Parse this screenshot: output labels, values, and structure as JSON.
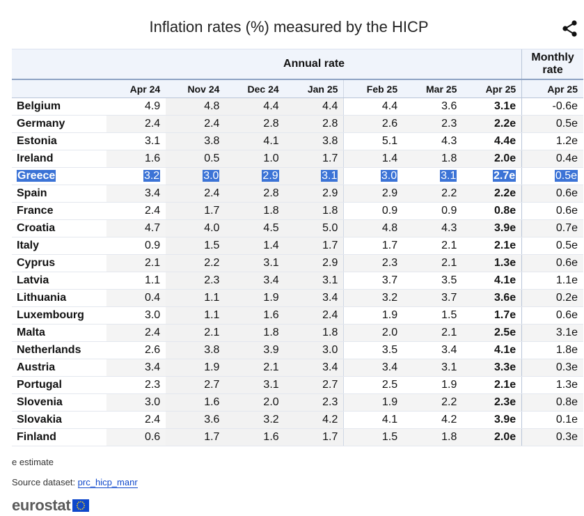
{
  "title": "Inflation rates (%) measured by the HICP",
  "header": {
    "annual_label": "Annual rate",
    "monthly_label_line1": "Monthly",
    "monthly_label_line2": "rate",
    "columns": [
      "Apr 24",
      "Nov 24",
      "Dec 24",
      "Jan 25",
      "Feb 25",
      "Mar 25",
      "Apr 25",
      "Apr 25"
    ]
  },
  "rows": [
    {
      "country": "Belgium",
      "values": [
        "4.9",
        "4.8",
        "4.4",
        "4.4",
        "4.4",
        "3.6",
        "3.1e",
        "-0.6e"
      ]
    },
    {
      "country": "Germany",
      "values": [
        "2.4",
        "2.4",
        "2.8",
        "2.8",
        "2.6",
        "2.3",
        "2.2e",
        "0.5e"
      ]
    },
    {
      "country": "Estonia",
      "values": [
        "3.1",
        "3.8",
        "4.1",
        "3.8",
        "5.1",
        "4.3",
        "4.4e",
        "1.2e"
      ]
    },
    {
      "country": "Ireland",
      "values": [
        "1.6",
        "0.5",
        "1.0",
        "1.7",
        "1.4",
        "1.8",
        "2.0e",
        "0.4e"
      ]
    },
    {
      "country": "Greece",
      "values": [
        "3.2",
        "3.0",
        "2.9",
        "3.1",
        "3.0",
        "3.1",
        "2.7e",
        "0.5e"
      ]
    },
    {
      "country": "Spain",
      "values": [
        "3.4",
        "2.4",
        "2.8",
        "2.9",
        "2.9",
        "2.2",
        "2.2e",
        "0.6e"
      ]
    },
    {
      "country": "France",
      "values": [
        "2.4",
        "1.7",
        "1.8",
        "1.8",
        "0.9",
        "0.9",
        "0.8e",
        "0.6e"
      ]
    },
    {
      "country": "Croatia",
      "values": [
        "4.7",
        "4.0",
        "4.5",
        "5.0",
        "4.8",
        "4.3",
        "3.9e",
        "0.7e"
      ]
    },
    {
      "country": "Italy",
      "values": [
        "0.9",
        "1.5",
        "1.4",
        "1.7",
        "1.7",
        "2.1",
        "2.1e",
        "0.5e"
      ]
    },
    {
      "country": "Cyprus",
      "values": [
        "2.1",
        "2.2",
        "3.1",
        "2.9",
        "2.3",
        "2.1",
        "1.3e",
        "0.6e"
      ]
    },
    {
      "country": "Latvia",
      "values": [
        "1.1",
        "2.3",
        "3.4",
        "3.1",
        "3.7",
        "3.5",
        "4.1e",
        "1.1e"
      ]
    },
    {
      "country": "Lithuania",
      "values": [
        "0.4",
        "1.1",
        "1.9",
        "3.4",
        "3.2",
        "3.7",
        "3.6e",
        "0.2e"
      ]
    },
    {
      "country": "Luxembourg",
      "values": [
        "3.0",
        "1.1",
        "1.6",
        "2.4",
        "1.9",
        "1.5",
        "1.7e",
        "0.6e"
      ]
    },
    {
      "country": "Malta",
      "values": [
        "2.4",
        "2.1",
        "1.8",
        "1.8",
        "2.0",
        "2.1",
        "2.5e",
        "3.1e"
      ]
    },
    {
      "country": "Netherlands",
      "values": [
        "2.6",
        "3.8",
        "3.9",
        "3.0",
        "3.5",
        "3.4",
        "4.1e",
        "1.8e"
      ]
    },
    {
      "country": "Austria",
      "values": [
        "3.4",
        "1.9",
        "2.1",
        "3.4",
        "3.4",
        "3.1",
        "3.3e",
        "0.3e"
      ]
    },
    {
      "country": "Portugal",
      "values": [
        "2.3",
        "2.7",
        "3.1",
        "2.7",
        "2.5",
        "1.9",
        "2.1e",
        "1.3e"
      ]
    },
    {
      "country": "Slovenia",
      "values": [
        "3.0",
        "1.6",
        "2.0",
        "2.3",
        "1.9",
        "2.2",
        "2.3e",
        "0.8e"
      ]
    },
    {
      "country": "Slovakia",
      "values": [
        "2.4",
        "3.6",
        "3.2",
        "4.2",
        "4.1",
        "4.2",
        "3.9e",
        "0.1e"
      ]
    },
    {
      "country": "Finland",
      "values": [
        "0.6",
        "1.7",
        "1.6",
        "1.7",
        "1.5",
        "1.8",
        "2.0e",
        "0.3e"
      ]
    }
  ],
  "selected_row": "Greece",
  "footnote": "e estimate",
  "source": {
    "prefix": "Source dataset: ",
    "link_text": "prc_hicp_manr"
  },
  "logo_text": "eurostat",
  "colors": {
    "selection": "#3b73d6",
    "header_bg": "#f0f4fb",
    "link": "#0e47cb"
  },
  "icons": {
    "share": "share-icon",
    "flag": "eu-flag-icon"
  }
}
